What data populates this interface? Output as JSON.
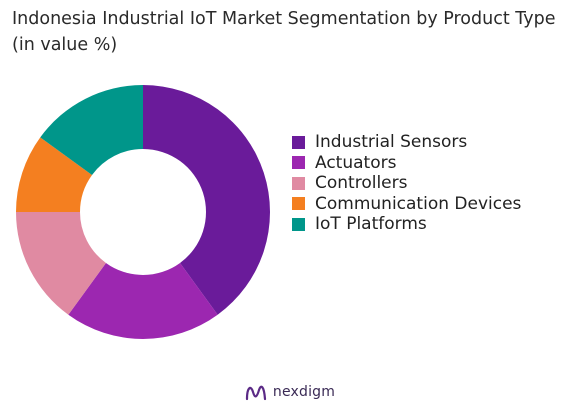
{
  "chart_data": {
    "type": "pie",
    "variant": "donut",
    "title": "Indonesia Industrial IoT Market Segmentation by Product Type (in value %)",
    "categories": [
      "Industrial Sensors",
      "Actuators",
      "Controllers",
      "Communication Devices",
      "IoT Platforms"
    ],
    "values": [
      40,
      20,
      15,
      10,
      15
    ],
    "unit": "%",
    "colors": [
      "#6a1b9a",
      "#9c27b0",
      "#e08aa2",
      "#f47f20",
      "#00968a"
    ],
    "legend_position": "right"
  },
  "brand": {
    "name": "nexdigm",
    "logo_icon": "nexdigm-logo-icon"
  }
}
